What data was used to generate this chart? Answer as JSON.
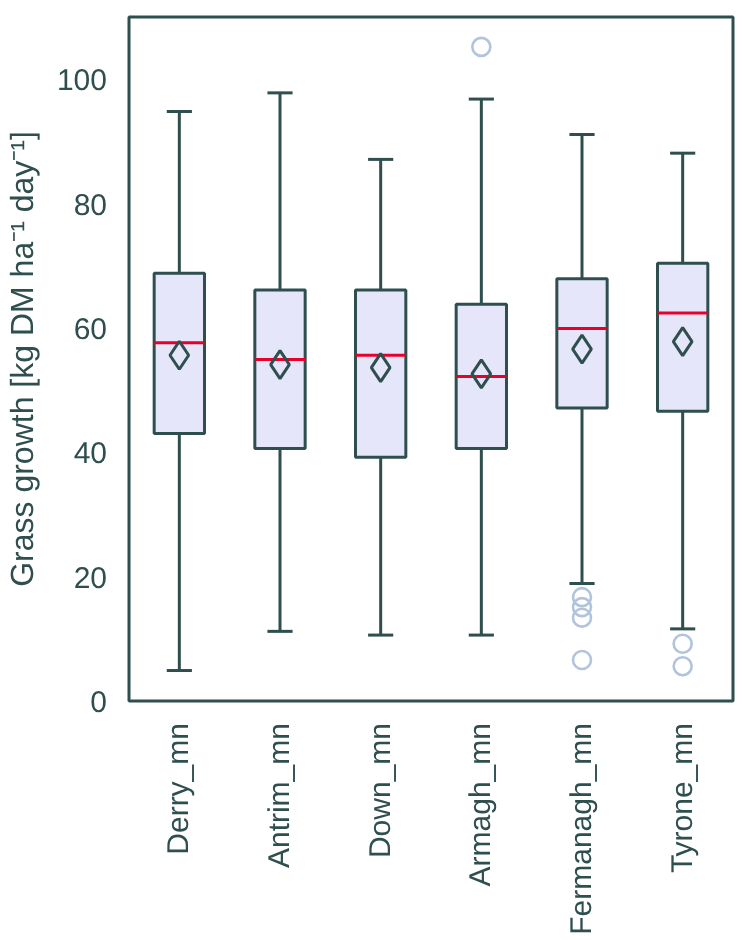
{
  "chart_data": {
    "type": "box",
    "ylabel": "Grass growth [kg DM ha⁻¹ day⁻¹]",
    "categories": [
      "Derry_mn",
      "Antrim_mn",
      "Down_mn",
      "Armagh_mn",
      "Fermanagh_mn",
      "Tyrone_mn"
    ],
    "ylim": [
      0,
      110
    ],
    "yticks": [
      0,
      20,
      40,
      60,
      80,
      100
    ],
    "grid": false,
    "marker": "diamond",
    "series": [
      {
        "color": "#e6e6fa",
        "boxes": [
          {
            "low": 4.9,
            "q1": 43,
            "median": 57.6,
            "q3": 68.8,
            "high": 94.8,
            "mean": 55.6
          },
          {
            "low": 11.2,
            "q1": 40.6,
            "median": 54.9,
            "q3": 66.1,
            "high": 97.8,
            "mean": 54.1
          },
          {
            "low": 10.6,
            "q1": 39.2,
            "median": 55.6,
            "q3": 66.1,
            "high": 87.1,
            "mean": 53.6
          },
          {
            "low": 10.6,
            "q1": 40.6,
            "median": 52.2,
            "q3": 63.8,
            "high": 96.8,
            "mean": 52.6,
            "outliers": [
              105.2
            ]
          },
          {
            "low": 18.9,
            "q1": 47.1,
            "median": 59.9,
            "q3": 67.9,
            "high": 91.1,
            "mean": 56.6,
            "outliers": [
              16.7,
              15.1,
              13.4,
              6.6
            ]
          },
          {
            "low": 11.6,
            "q1": 46.6,
            "median": 62.4,
            "q3": 70.4,
            "high": 88.1,
            "mean": 57.8,
            "outliers": [
              9.2,
              5.6
            ]
          }
        ]
      }
    ]
  }
}
